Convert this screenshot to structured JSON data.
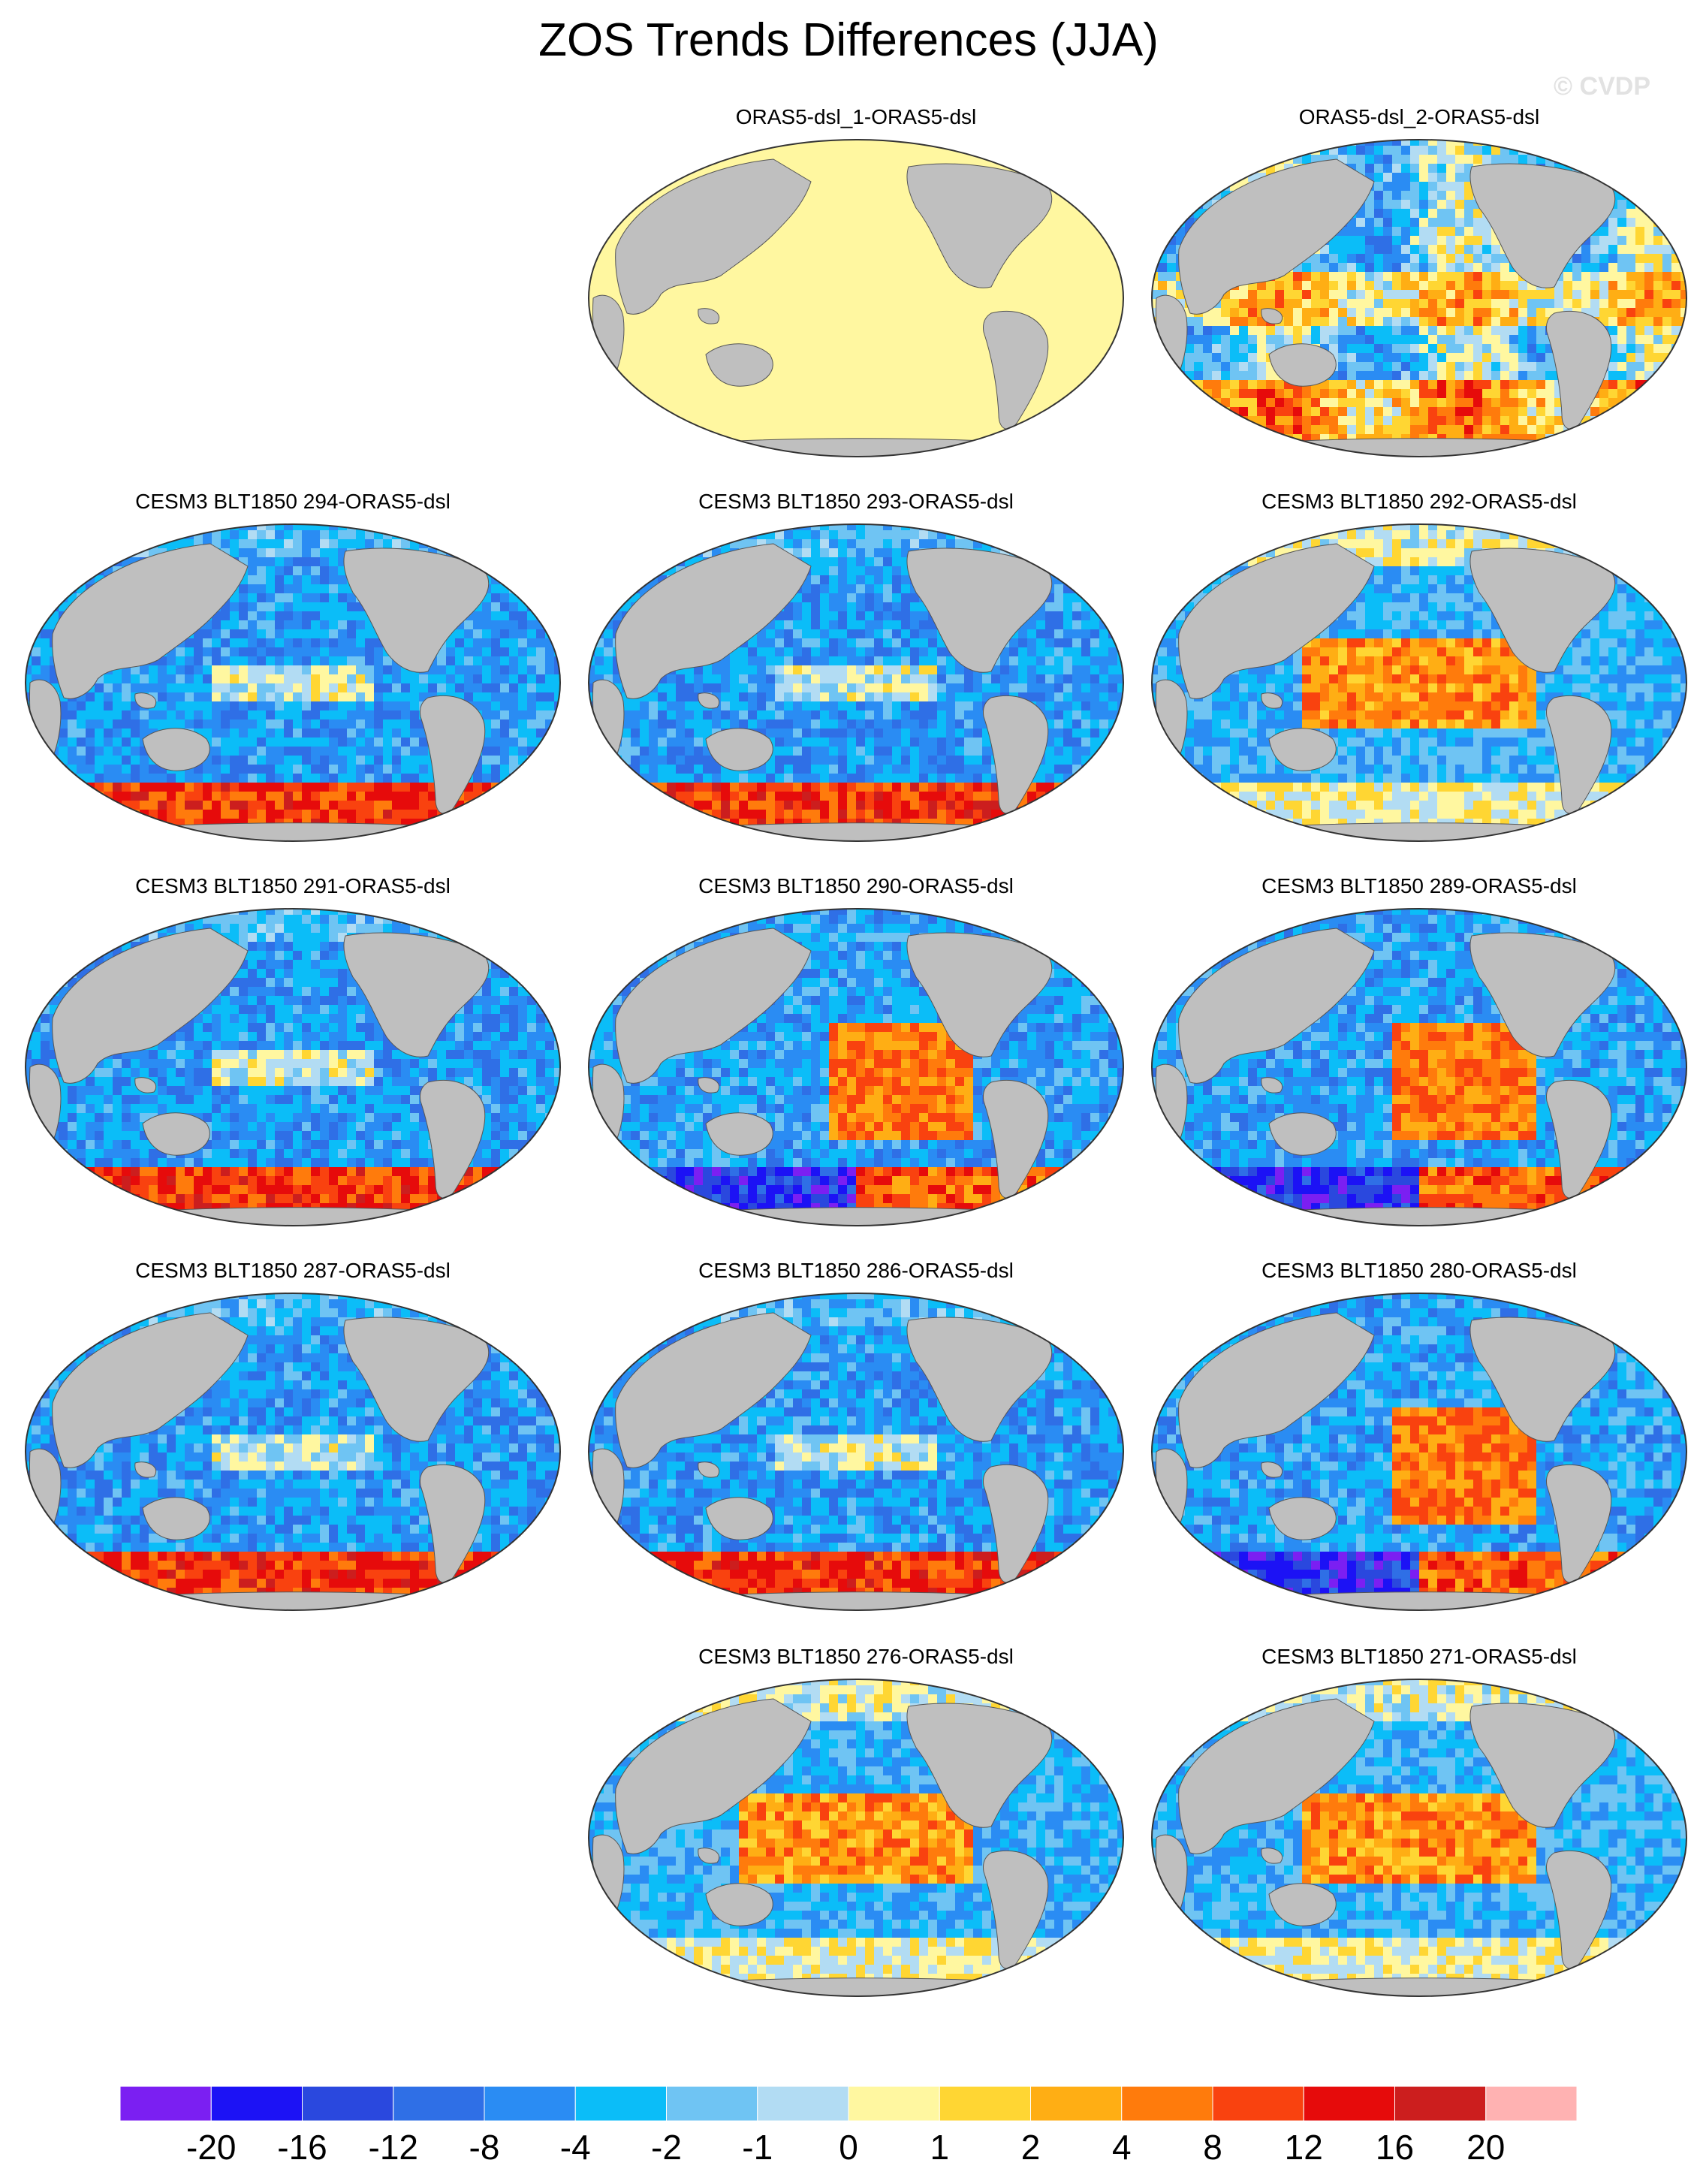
{
  "title": "ZOS Trends Differences (JJA)",
  "watermark": "© CVDP",
  "panels": [
    {
      "label": "ORAS5-dsl_1-ORAS5-dsl",
      "pattern": "zero"
    },
    {
      "label": "ORAS5-dsl_2-ORAS5-dsl",
      "pattern": "mixed"
    },
    {
      "label": "CESM3 BLT1850 294-ORAS5-dsl",
      "pattern": "cool"
    },
    {
      "label": "CESM3 BLT1850 293-ORAS5-dsl",
      "pattern": "cool"
    },
    {
      "label": "CESM3 BLT1850 292-ORAS5-dsl",
      "pattern": "warm-pacific"
    },
    {
      "label": "CESM3 BLT1850 291-ORAS5-dsl",
      "pattern": "cool"
    },
    {
      "label": "CESM3 BLT1850 290-ORAS5-dsl",
      "pattern": "warm-east"
    },
    {
      "label": "CESM3 BLT1850 289-ORAS5-dsl",
      "pattern": "warm-east"
    },
    {
      "label": "CESM3 BLT1850 287-ORAS5-dsl",
      "pattern": "cool"
    },
    {
      "label": "CESM3 BLT1850 286-ORAS5-dsl",
      "pattern": "cool"
    },
    {
      "label": "CESM3 BLT1850 280-ORAS5-dsl",
      "pattern": "warm-east"
    },
    {
      "label": "CESM3 BLT1850 276-ORAS5-dsl",
      "pattern": "warm-pacific"
    },
    {
      "label": "CESM3 BLT1850 271-ORAS5-dsl",
      "pattern": "warm-pacific"
    }
  ],
  "colorbar": {
    "colors": [
      "#7b1ff2",
      "#1c12f5",
      "#2a48de",
      "#2f6fe6",
      "#2a8cf3",
      "#0bbdf8",
      "#6fc4f3",
      "#b2dcf3",
      "#fff7a0",
      "#ffd633",
      "#ffae14",
      "#ff7b0c",
      "#f9420f",
      "#e60b0b",
      "#cc1e1e",
      "#ffb2b2"
    ],
    "labels": [
      "-20",
      "-16",
      "-12",
      "-8",
      "-4",
      "-2",
      "-1",
      "0",
      "1",
      "2",
      "4",
      "8",
      "12",
      "16",
      "20"
    ]
  },
  "land_color": "#bfbfbf"
}
